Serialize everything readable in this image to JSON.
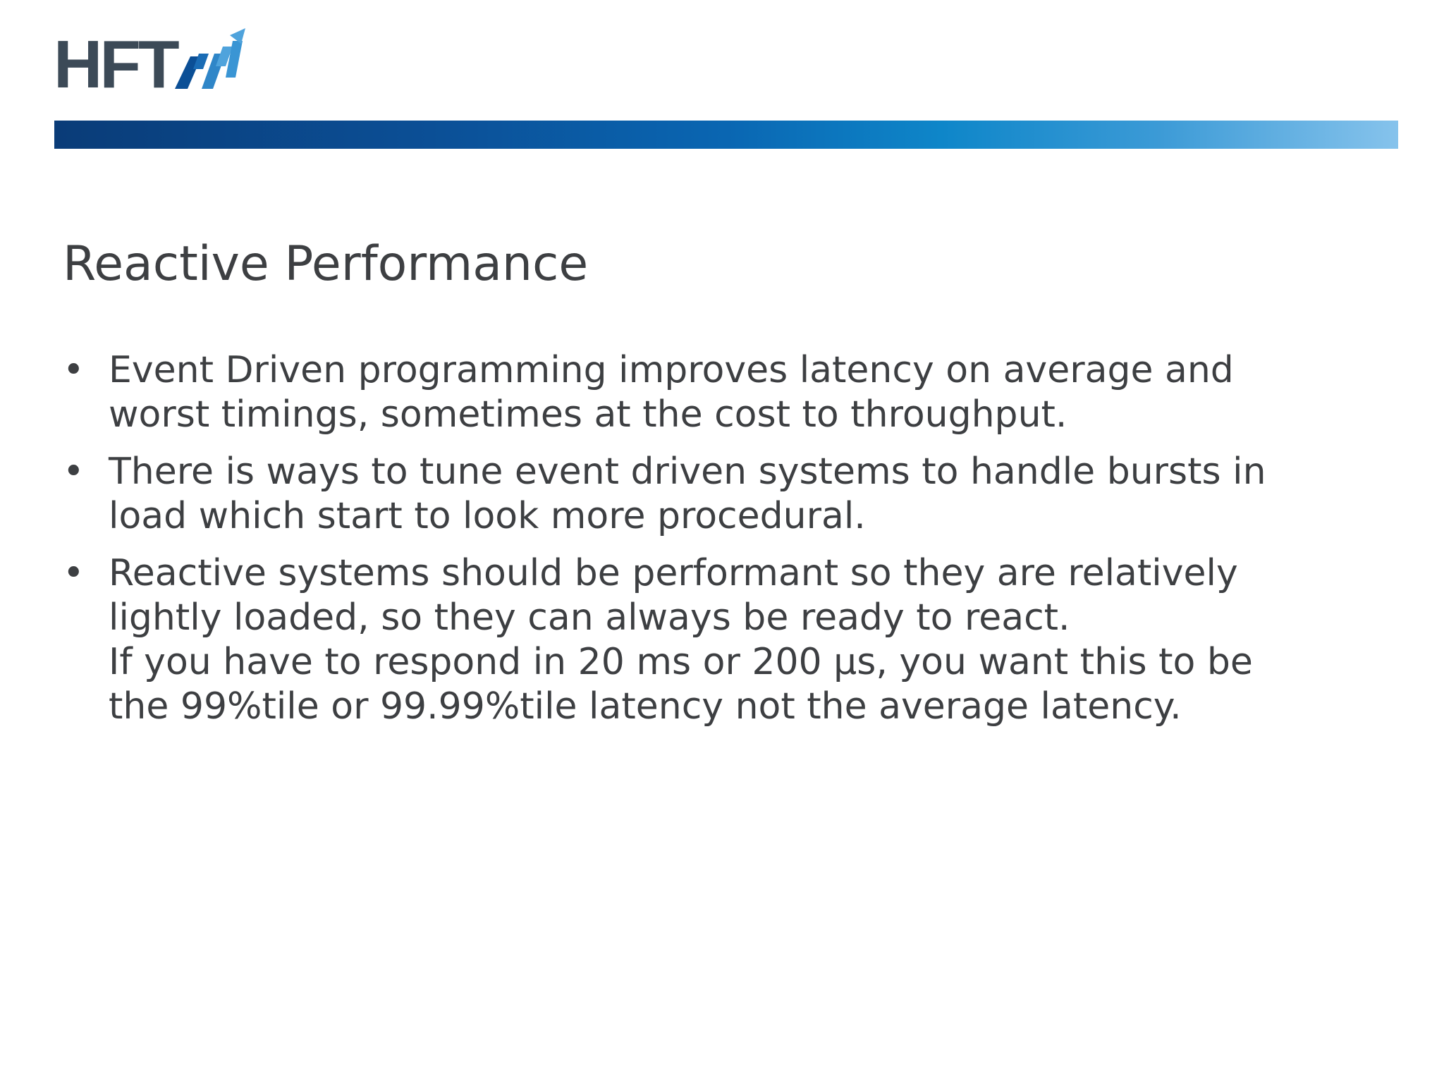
{
  "logo": {
    "text": "HFT",
    "icon": "rising-zigzag-arrow-icon",
    "colors": {
      "text": "#3c4a57",
      "mark_dark": "#0b4f96",
      "mark_light": "#4fa3dc"
    }
  },
  "header_bar": {
    "gradient": [
      "#0a3c78",
      "#0a66b2",
      "#86c3ec"
    ]
  },
  "slide": {
    "title": "Reactive Performance",
    "bullets": [
      {
        "lines": [
          "Event Driven programming improves latency on average and",
          "worst timings, sometimes at the cost to throughput."
        ]
      },
      {
        "lines": [
          "There is ways to tune event driven systems to handle bursts in",
          "load which start to look more procedural."
        ]
      },
      {
        "lines": [
          "Reactive systems should be performant so they are relatively",
          "lightly loaded, so they can always be ready to react.",
          "If you have to respond in 20 ms or 200 μs, you want this to be",
          "the 99%tile or 99.99%tile latency not the average latency."
        ]
      }
    ]
  },
  "bullet_glyph": "•",
  "colors": {
    "text": "#3d3f42",
    "background": "#ffffff"
  }
}
